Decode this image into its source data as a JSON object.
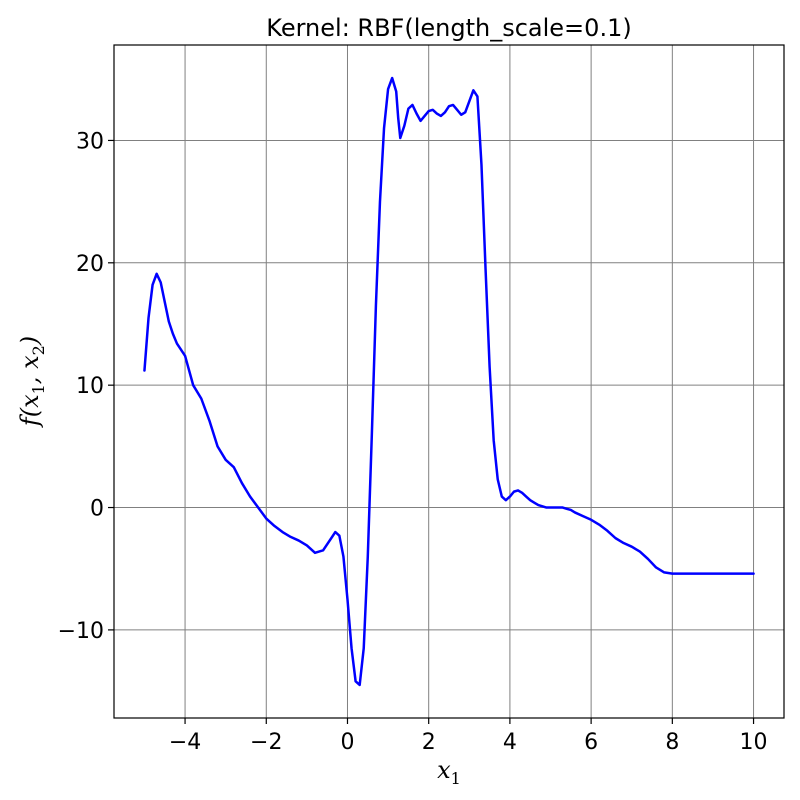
{
  "chart_data": {
    "type": "line",
    "title": "Kernel: RBF(length_scale=0.1)",
    "xlabel": {
      "main": "x",
      "sub": "1"
    },
    "ylabel": {
      "f": "f",
      "x1": "x",
      "s1": "1",
      "x2": "x",
      "s2": "2"
    },
    "xlim": [
      -5.75,
      10.75
    ],
    "ylim": [
      -17.2,
      37.8
    ],
    "xticks": [
      -4,
      -2,
      0,
      2,
      4,
      6,
      8,
      10
    ],
    "yticks": [
      -10,
      0,
      10,
      20,
      30
    ],
    "xtick_labels": [
      "−4",
      "−2",
      "0",
      "2",
      "4",
      "6",
      "8",
      "10"
    ],
    "ytick_labels": [
      "−10",
      "0",
      "10",
      "20",
      "30"
    ],
    "grid": true,
    "series": [
      {
        "color": "#0000ff",
        "x": [
          -5.0,
          -4.9,
          -4.8,
          -4.7,
          -4.6,
          -4.5,
          -4.4,
          -4.3,
          -4.2,
          -4.0,
          -3.8,
          -3.6,
          -3.4,
          -3.2,
          -3.0,
          -2.8,
          -2.6,
          -2.4,
          -2.2,
          -2.0,
          -1.8,
          -1.6,
          -1.4,
          -1.2,
          -1.0,
          -0.8,
          -0.6,
          -0.4,
          -0.3,
          -0.2,
          -0.1,
          0.0,
          0.1,
          0.2,
          0.3,
          0.4,
          0.5,
          0.6,
          0.7,
          0.8,
          0.9,
          1.0,
          1.1,
          1.2,
          1.25,
          1.3,
          1.4,
          1.5,
          1.6,
          1.7,
          1.8,
          1.9,
          2.0,
          2.1,
          2.2,
          2.3,
          2.4,
          2.5,
          2.6,
          2.7,
          2.8,
          2.9,
          3.0,
          3.1,
          3.2,
          3.3,
          3.4,
          3.5,
          3.6,
          3.7,
          3.8,
          3.9,
          4.0,
          4.1,
          4.2,
          4.3,
          4.4,
          4.5,
          4.6,
          4.7,
          4.8,
          4.9,
          5.0,
          5.1,
          5.2,
          5.3,
          5.4,
          5.5,
          5.6,
          5.8,
          6.0,
          6.2,
          6.4,
          6.6,
          6.8,
          7.0,
          7.2,
          7.4,
          7.6,
          7.8,
          8.0,
          8.2,
          8.4,
          8.6,
          8.8,
          9.0,
          9.2,
          9.4,
          9.5,
          9.6,
          9.7,
          9.8,
          9.9,
          10.0
        ],
        "y": [
          11.2,
          15.5,
          18.2,
          19.1,
          18.4,
          16.8,
          15.2,
          14.2,
          13.4,
          12.4,
          10.0,
          8.9,
          7.1,
          5.0,
          3.9,
          3.3,
          2.0,
          0.9,
          0.0,
          -0.9,
          -1.5,
          -2.0,
          -2.4,
          -2.7,
          -3.1,
          -3.7,
          -3.5,
          -2.5,
          -2.0,
          -2.3,
          -4.0,
          -7.5,
          -11.5,
          -14.2,
          -14.5,
          -11.5,
          -4.0,
          6.0,
          16.5,
          25.0,
          31.0,
          34.2,
          35.1,
          34.0,
          31.8,
          30.2,
          31.2,
          32.6,
          32.9,
          32.2,
          31.6,
          32.0,
          32.4,
          32.5,
          32.2,
          32.0,
          32.3,
          32.8,
          32.9,
          32.5,
          32.1,
          32.3,
          33.2,
          34.1,
          33.6,
          28.0,
          19.5,
          11.5,
          5.5,
          2.3,
          0.9,
          0.6,
          0.9,
          1.3,
          1.4,
          1.2,
          0.9,
          0.6,
          0.4,
          0.2,
          0.1,
          0.0,
          0.0,
          0.0,
          0.0,
          0.0,
          -0.1,
          -0.2,
          -0.4,
          -0.7,
          -1.0,
          -1.4,
          -1.9,
          -2.5,
          -2.9,
          -3.2,
          -3.6,
          -4.2,
          -4.9,
          -5.3,
          -5.4,
          -5.4,
          -5.4,
          -5.4,
          -5.4,
          -5.4,
          -5.4,
          -5.4,
          -5.4,
          -5.4,
          -5.4,
          -5.4,
          -5.4,
          -5.4
        ]
      }
    ]
  }
}
